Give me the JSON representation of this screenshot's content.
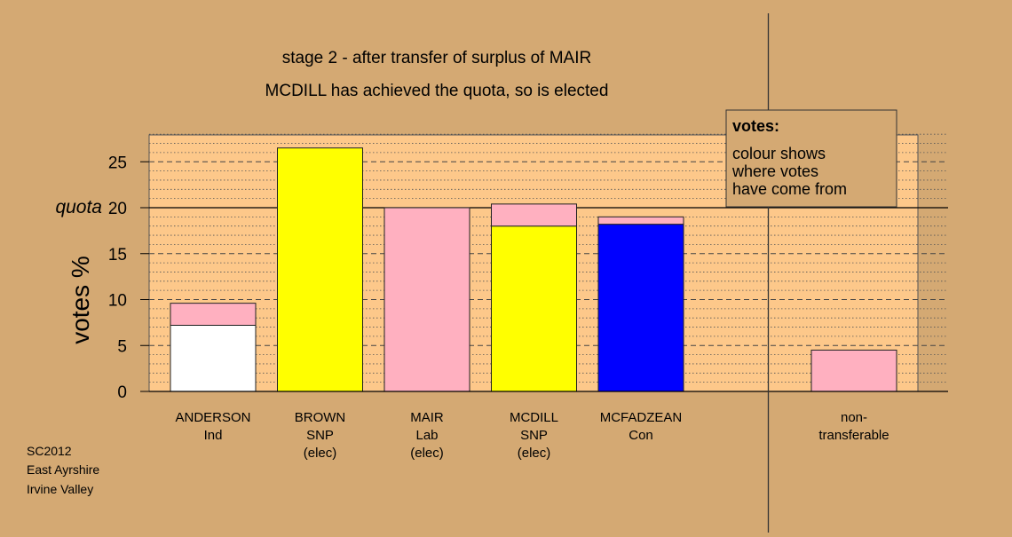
{
  "chart_data": {
    "type": "bar",
    "title": "stage 2 - after transfer of surplus of MAIR",
    "subtitle": "MCDILL has achieved the quota, so is elected",
    "ylabel": "votes %",
    "ylim": [
      0,
      28
    ],
    "yticks": [
      0,
      5,
      10,
      15,
      20,
      25
    ],
    "quota": 20,
    "quota_label": "quota",
    "grid": true,
    "candidates": [
      {
        "name": "ANDERSON",
        "party": "Ind",
        "status": "",
        "segments": [
          {
            "value": 7.2,
            "color": "#ffffff"
          },
          {
            "value": 2.4,
            "color": "#ffb0c0"
          }
        ]
      },
      {
        "name": "BROWN",
        "party": "SNP",
        "status": "(elec)",
        "segments": [
          {
            "value": 26.5,
            "color": "#ffff00"
          }
        ]
      },
      {
        "name": "MAIR",
        "party": "Lab",
        "status": "(elec)",
        "segments": [
          {
            "value": 20.0,
            "color": "#ffb0c0"
          }
        ]
      },
      {
        "name": "MCDILL",
        "party": "SNP",
        "status": "(elec)",
        "segments": [
          {
            "value": 18.0,
            "color": "#ffff00"
          },
          {
            "value": 2.4,
            "color": "#ffb0c0"
          }
        ]
      },
      {
        "name": "MCFADZEAN",
        "party": "Con",
        "status": "",
        "segments": [
          {
            "value": 18.2,
            "color": "#0000ff"
          },
          {
            "value": 0.8,
            "color": "#ffb0c0"
          }
        ]
      }
    ],
    "nontransferable": {
      "label_line1": "non-",
      "label_line2": "transferable",
      "segments": [
        {
          "value": 4.5,
          "color": "#ffb0c0"
        }
      ]
    },
    "legend": {
      "title": "votes:",
      "lines": [
        "colour shows",
        "where votes",
        "have come from"
      ],
      "placement": "top-right"
    }
  },
  "source": {
    "line1": "SC2012",
    "line2": "East Ayrshire",
    "line3": "Irvine Valley"
  },
  "colors": {
    "background": "#d4a973",
    "plot_background": "#fdc88a"
  }
}
